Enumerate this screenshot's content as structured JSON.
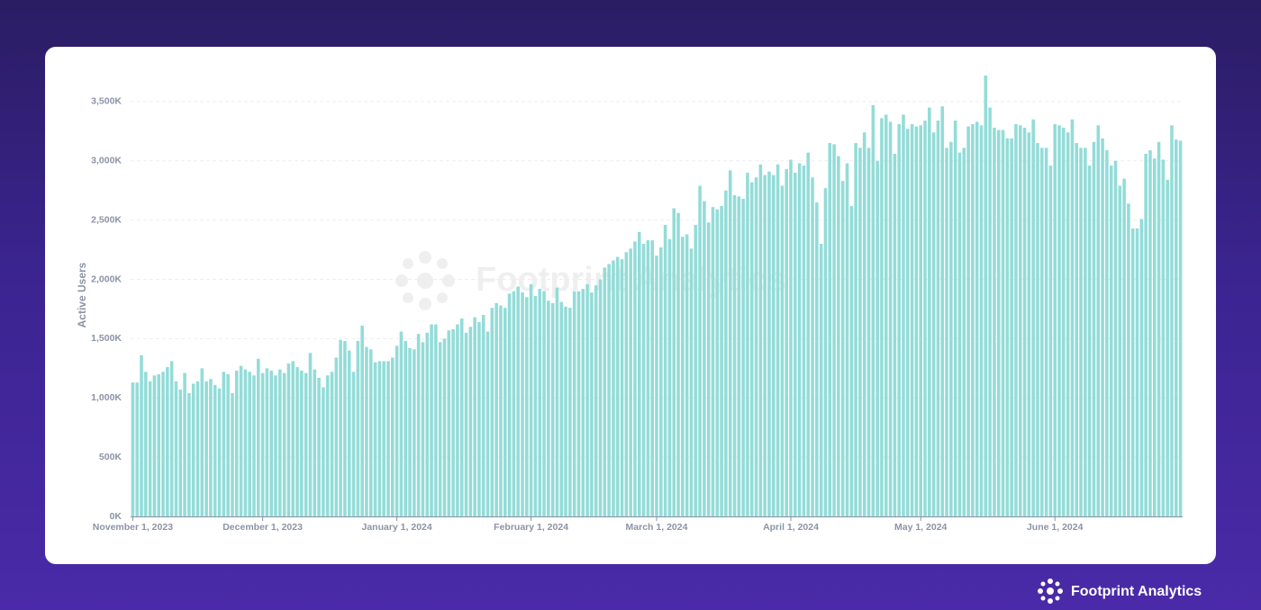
{
  "chart_data": {
    "type": "bar",
    "watermark": "Footprint Analytics",
    "brand": "Footprint Analytics",
    "y_label": "Active Users",
    "color": "#93dcd8",
    "xlim": [
      "2023-11-01",
      "2024-06-30"
    ],
    "ylim": [
      0,
      3750
    ],
    "yticks": [
      {
        "value": 0,
        "label": "0K"
      },
      {
        "value": 500,
        "label": "500K"
      },
      {
        "value": 1000,
        "label": "1,000K"
      },
      {
        "value": 1500,
        "label": "1,500K"
      },
      {
        "value": 2000,
        "label": "2,000K"
      },
      {
        "value": 2500,
        "label": "2,500K"
      },
      {
        "value": 3000,
        "label": "3,000K"
      },
      {
        "value": 3500,
        "label": "3,500K"
      }
    ],
    "xticks": [
      {
        "value": "2023-11-01",
        "label": "November 1, 2023"
      },
      {
        "value": "2023-12-01",
        "label": "December 1, 2023"
      },
      {
        "value": "2024-01-01",
        "label": "January 1, 2024"
      },
      {
        "value": "2024-02-01",
        "label": "February 1, 2024"
      },
      {
        "value": "2024-03-01",
        "label": "March 1, 2024"
      },
      {
        "value": "2024-04-01",
        "label": "April 1, 2024"
      },
      {
        "value": "2024-05-01",
        "label": "May 1, 2024"
      },
      {
        "value": "2024-06-01",
        "label": "June 1, 2024"
      }
    ],
    "grid": true,
    "x": [
      "2023-11-01",
      "2023-11-02",
      "2023-11-03",
      "2023-11-04",
      "2023-11-05",
      "2023-11-06",
      "2023-11-07",
      "2023-11-08",
      "2023-11-09",
      "2023-11-10",
      "2023-11-11",
      "2023-11-12",
      "2023-11-13",
      "2023-11-14",
      "2023-11-15",
      "2023-11-16",
      "2023-11-17",
      "2023-11-18",
      "2023-11-19",
      "2023-11-20",
      "2023-11-21",
      "2023-11-22",
      "2023-11-23",
      "2023-11-24",
      "2023-11-25",
      "2023-11-26",
      "2023-11-27",
      "2023-11-28",
      "2023-11-29",
      "2023-11-30",
      "2023-12-01",
      "2023-12-02",
      "2023-12-03",
      "2023-12-04",
      "2023-12-05",
      "2023-12-06",
      "2023-12-07",
      "2023-12-08",
      "2023-12-09",
      "2023-12-10",
      "2023-12-11",
      "2023-12-12",
      "2023-12-13",
      "2023-12-14",
      "2023-12-15",
      "2023-12-16",
      "2023-12-17",
      "2023-12-18",
      "2023-12-19",
      "2023-12-20",
      "2023-12-21",
      "2023-12-22",
      "2023-12-23",
      "2023-12-24",
      "2023-12-25",
      "2023-12-26",
      "2023-12-27",
      "2023-12-28",
      "2023-12-29",
      "2023-12-30",
      "2023-12-31",
      "2024-01-01",
      "2024-01-02",
      "2024-01-03",
      "2024-01-04",
      "2024-01-05",
      "2024-01-06",
      "2024-01-07",
      "2024-01-08",
      "2024-01-09",
      "2024-01-10",
      "2024-01-11",
      "2024-01-12",
      "2024-01-13",
      "2024-01-14",
      "2024-01-15",
      "2024-01-16",
      "2024-01-17",
      "2024-01-18",
      "2024-01-19",
      "2024-01-20",
      "2024-01-21",
      "2024-01-22",
      "2024-01-23",
      "2024-01-24",
      "2024-01-25",
      "2024-01-26",
      "2024-01-27",
      "2024-01-28",
      "2024-01-29",
      "2024-01-30",
      "2024-01-31",
      "2024-02-01",
      "2024-02-02",
      "2024-02-03",
      "2024-02-04",
      "2024-02-05",
      "2024-02-06",
      "2024-02-07",
      "2024-02-08",
      "2024-02-09",
      "2024-02-10",
      "2024-02-11",
      "2024-02-12",
      "2024-02-13",
      "2024-02-14",
      "2024-02-15",
      "2024-02-16",
      "2024-02-17",
      "2024-02-18",
      "2024-02-19",
      "2024-02-20",
      "2024-02-21",
      "2024-02-22",
      "2024-02-23",
      "2024-02-24",
      "2024-02-25",
      "2024-02-26",
      "2024-02-27",
      "2024-02-28",
      "2024-02-29",
      "2024-03-01",
      "2024-03-02",
      "2024-03-03",
      "2024-03-04",
      "2024-03-05",
      "2024-03-06",
      "2024-03-07",
      "2024-03-08",
      "2024-03-09",
      "2024-03-10",
      "2024-03-11",
      "2024-03-12",
      "2024-03-13",
      "2024-03-14",
      "2024-03-15",
      "2024-03-16",
      "2024-03-17",
      "2024-03-18",
      "2024-03-19",
      "2024-03-20",
      "2024-03-21",
      "2024-03-22",
      "2024-03-23",
      "2024-03-24",
      "2024-03-25",
      "2024-03-26",
      "2024-03-27",
      "2024-03-28",
      "2024-03-29",
      "2024-03-30",
      "2024-03-31",
      "2024-04-01",
      "2024-04-02",
      "2024-04-03",
      "2024-04-04",
      "2024-04-05",
      "2024-04-06",
      "2024-04-07",
      "2024-04-08",
      "2024-04-09",
      "2024-04-10",
      "2024-04-11",
      "2024-04-12",
      "2024-04-13",
      "2024-04-14",
      "2024-04-15",
      "2024-04-16",
      "2024-04-17",
      "2024-04-18",
      "2024-04-19",
      "2024-04-20",
      "2024-04-21",
      "2024-04-22",
      "2024-04-23",
      "2024-04-24",
      "2024-04-25",
      "2024-04-26",
      "2024-04-27",
      "2024-04-28",
      "2024-04-29",
      "2024-04-30",
      "2024-05-01",
      "2024-05-02",
      "2024-05-03",
      "2024-05-04",
      "2024-05-05",
      "2024-05-06",
      "2024-05-07",
      "2024-05-08",
      "2024-05-09",
      "2024-05-10",
      "2024-05-11",
      "2024-05-12",
      "2024-05-13",
      "2024-05-14",
      "2024-05-15",
      "2024-05-16",
      "2024-05-17",
      "2024-05-18",
      "2024-05-19",
      "2024-05-20",
      "2024-05-21",
      "2024-05-22",
      "2024-05-23",
      "2024-05-24",
      "2024-05-25",
      "2024-05-26",
      "2024-05-27",
      "2024-05-28",
      "2024-05-29",
      "2024-05-30",
      "2024-05-31",
      "2024-06-01",
      "2024-06-02",
      "2024-06-03",
      "2024-06-04",
      "2024-06-05",
      "2024-06-06",
      "2024-06-07",
      "2024-06-08",
      "2024-06-09",
      "2024-06-10",
      "2024-06-11",
      "2024-06-12",
      "2024-06-13",
      "2024-06-14",
      "2024-06-15",
      "2024-06-16",
      "2024-06-17",
      "2024-06-18",
      "2024-06-19",
      "2024-06-20",
      "2024-06-21",
      "2024-06-22",
      "2024-06-23",
      "2024-06-24",
      "2024-06-25",
      "2024-06-26",
      "2024-06-27",
      "2024-06-28",
      "2024-06-29",
      "2024-06-30"
    ],
    "values": [
      1130,
      1130,
      1360,
      1220,
      1140,
      1190,
      1200,
      1220,
      1260,
      1310,
      1140,
      1070,
      1210,
      1040,
      1120,
      1140,
      1250,
      1140,
      1160,
      1110,
      1080,
      1220,
      1200,
      1040,
      1230,
      1270,
      1240,
      1220,
      1190,
      1330,
      1210,
      1250,
      1230,
      1190,
      1240,
      1210,
      1290,
      1310,
      1260,
      1230,
      1210,
      1380,
      1240,
      1170,
      1090,
      1190,
      1220,
      1340,
      1490,
      1480,
      1400,
      1220,
      1480,
      1610,
      1430,
      1410,
      1300,
      1310,
      1310,
      1310,
      1340,
      1440,
      1560,
      1480,
      1420,
      1410,
      1540,
      1470,
      1550,
      1620,
      1620,
      1470,
      1500,
      1570,
      1580,
      1620,
      1670,
      1550,
      1600,
      1680,
      1640,
      1700,
      1560,
      1760,
      1800,
      1780,
      1760,
      1880,
      1900,
      1940,
      1890,
      1850,
      1960,
      1860,
      1920,
      1900,
      1820,
      1800,
      1930,
      1810,
      1770,
      1760,
      1900,
      1900,
      1920,
      1960,
      1890,
      1950,
      2000,
      2100,
      2130,
      2160,
      2190,
      2170,
      2230,
      2260,
      2320,
      2400,
      2300,
      2330,
      2330,
      2200,
      2270,
      2460,
      2340,
      2600,
      2560,
      2360,
      2380,
      2260,
      2460,
      2790,
      2660,
      2480,
      2610,
      2590,
      2620,
      2750,
      2920,
      2710,
      2700,
      2680,
      2900,
      2820,
      2860,
      2970,
      2880,
      2910,
      2880,
      2970,
      2790,
      2930,
      3010,
      2900,
      2980,
      2960,
      3070,
      2860,
      2650,
      2300,
      2770,
      3150,
      3140,
      3040,
      2830,
      2980,
      2620,
      3150,
      3110,
      3240,
      3110,
      3470,
      3000,
      3360,
      3390,
      3330,
      3060,
      3310,
      3390,
      3270,
      3310,
      3290,
      3300,
      3340,
      3450,
      3240,
      3340,
      3460,
      3110,
      3160,
      3340,
      3070,
      3110,
      3290,
      3310,
      3330,
      3300,
      3720,
      3450,
      3280,
      3260,
      3260,
      3190,
      3190,
      3310,
      3300,
      3280,
      3240,
      3350,
      3150,
      3110,
      3110,
      2960,
      3310,
      3300,
      3280,
      3240,
      3350,
      3150,
      3110,
      3110,
      2960,
      3160,
      3300,
      3190,
      3090,
      2960,
      3000,
      2790,
      2850,
      2640,
      2430,
      2430,
      2510,
      3060,
      3090,
      3020,
      3160,
      3010,
      2840,
      3300,
      3180,
      3170
    ]
  }
}
